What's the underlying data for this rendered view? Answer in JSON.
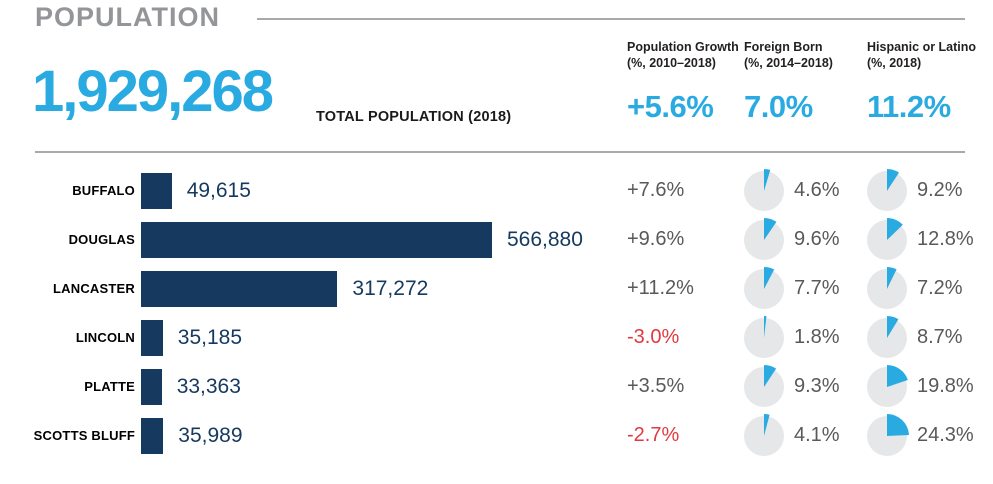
{
  "page": {
    "title": "POPULATION"
  },
  "header": {
    "total_value": "1,929,268",
    "total_label": "TOTAL POPULATION (2018)",
    "columns": [
      {
        "label_line1": "Population Growth",
        "label_line2": "(%, 2010–2018)",
        "value": "+5.6%"
      },
      {
        "label_line1": "Foreign Born",
        "label_line2": "(%, 2014–2018)",
        "value": "7.0%"
      },
      {
        "label_line1": "Hispanic or Latino",
        "label_line2": "(%, 2018)",
        "value": "11.2%"
      }
    ]
  },
  "colors": {
    "accent_blue": "#29abe2",
    "navy": "#15395f",
    "red": "#e13a3e",
    "title_gray": "#939598",
    "pie_gray": "#e6e7e8",
    "text_gray": "#58595b"
  },
  "chart_data": {
    "type": "bar",
    "title": "POPULATION",
    "bar_series_label": "TOTAL POPULATION (2018)",
    "categories": [
      "BUFFALO",
      "DOUGLAS",
      "LANCASTER",
      "LINCOLN",
      "PLATTE",
      "SCOTTS BLUFF"
    ],
    "values": [
      49615,
      566880,
      317272,
      35185,
      33363,
      35989
    ],
    "xlim": [
      0,
      566880
    ],
    "summary": {
      "total_population": "1,929,268",
      "population_growth": "+5.6%",
      "foreign_born": "7.0%",
      "hispanic_or_latino": "11.2%"
    },
    "column_headers": [
      "Population Growth (%, 2010–2018)",
      "Foreign Born (%, 2014–2018)",
      "Hispanic or Latino (%, 2018)"
    ],
    "rows": [
      {
        "county": "BUFFALO",
        "population": 49615,
        "population_label": "49,615",
        "growth": "+7.6%",
        "growth_pct": 7.6,
        "foreign_born_pct": 4.6,
        "foreign_born_label": "4.6%",
        "hispanic_pct": 9.2,
        "hispanic_label": "9.2%"
      },
      {
        "county": "DOUGLAS",
        "population": 566880,
        "population_label": "566,880",
        "growth": "+9.6%",
        "growth_pct": 9.6,
        "foreign_born_pct": 9.6,
        "foreign_born_label": "9.6%",
        "hispanic_pct": 12.8,
        "hispanic_label": "12.8%"
      },
      {
        "county": "LANCASTER",
        "population": 317272,
        "population_label": "317,272",
        "growth": "+11.2%",
        "growth_pct": 11.2,
        "foreign_born_pct": 7.7,
        "foreign_born_label": "7.7%",
        "hispanic_pct": 7.2,
        "hispanic_label": "7.2%"
      },
      {
        "county": "LINCOLN",
        "population": 35185,
        "population_label": "35,185",
        "growth": "-3.0%",
        "growth_pct": -3.0,
        "foreign_born_pct": 1.8,
        "foreign_born_label": "1.8%",
        "hispanic_pct": 8.7,
        "hispanic_label": "8.7%"
      },
      {
        "county": "PLATTE",
        "population": 33363,
        "population_label": "33,363",
        "growth": "+3.5%",
        "growth_pct": 3.5,
        "foreign_born_pct": 9.3,
        "foreign_born_label": "9.3%",
        "hispanic_pct": 19.8,
        "hispanic_label": "19.8%"
      },
      {
        "county": "SCOTTS BLUFF",
        "population": 35989,
        "population_label": "35,989",
        "growth": "-2.7%",
        "growth_pct": -2.7,
        "foreign_born_pct": 4.1,
        "foreign_born_label": "4.1%",
        "hispanic_pct": 24.3,
        "hispanic_label": "24.3%"
      }
    ]
  }
}
